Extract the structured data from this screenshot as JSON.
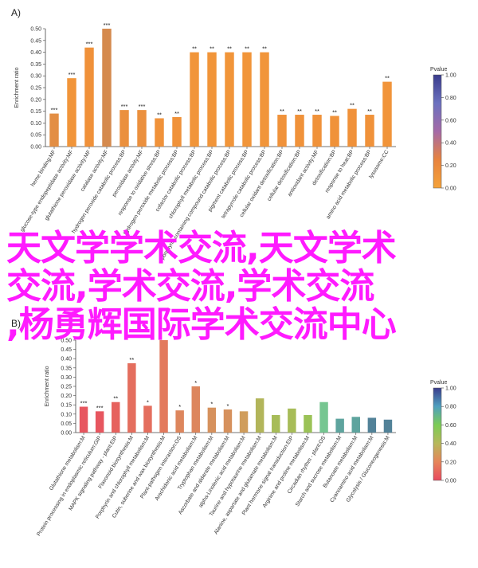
{
  "overlay": {
    "line1": "天文学学术交流,天文学术",
    "line2": "交流,学术交流,学术交流",
    "line3": ",杨勇辉国际学术交流中心"
  },
  "chart_data": [
    {
      "type": "bar",
      "panel_label": "A)",
      "ylabel": "Enrichment ratio",
      "ylim": [
        0,
        0.5
      ],
      "yticks": [
        "0.00",
        "0.05",
        "0.10",
        "0.15",
        "0.20",
        "0.25",
        "0.30",
        "0.35",
        "0.40",
        "0.45",
        "0.50"
      ],
      "categories": [
        "heme binding:MF",
        "glucose-type endopeptidase activity:MF",
        "glutathione peroxidase activity:MF",
        "catalase activity:MF",
        "hydrogen peroxide catabolic process:BP",
        "peroxidase activity:MF",
        "response to oxidative stress:BP",
        "hydrogen peroxide metabolic process:BP",
        "cofactor catabolic process:BP",
        "chlorophyll metabolic process:BP",
        "porphyrin-containing compound catabolic process:BP",
        "pigment catabolic process:BP",
        "tetrapyrrole catabolic process:BP",
        "cellular oxidant detoxification:BP",
        "cellular detoxification:BP",
        "antioxidant activity:MF",
        "detoxification:BP",
        "response to heat:BP",
        "amino acid metabolic process:BP",
        "lysosome:CC"
      ],
      "values": [
        0.14,
        0.29,
        0.42,
        0.5,
        0.155,
        0.155,
        0.12,
        0.125,
        0.4,
        0.4,
        0.4,
        0.4,
        0.4,
        0.135,
        0.135,
        0.135,
        0.13,
        0.16,
        0.135,
        0.275
      ],
      "significance": [
        "***",
        "***",
        "***",
        "***",
        "***",
        "***",
        "**",
        "**",
        "**",
        "**",
        "**",
        "**",
        "**",
        "**",
        "**",
        "**",
        "**",
        "**",
        "**",
        "**"
      ],
      "pvalues": [
        0.55,
        0.7,
        0.6,
        0.5,
        0.58,
        0.58,
        0.62,
        0.62,
        0.7,
        0.7,
        0.7,
        0.7,
        0.7,
        0.62,
        0.62,
        0.62,
        0.62,
        0.6,
        0.62,
        0.68
      ],
      "legend": {
        "title": "Pvalue",
        "ticks": [
          "0.00",
          "0.20",
          "0.40",
          "0.60",
          "0.80",
          "1.00"
        ],
        "placement": "right"
      }
    },
    {
      "type": "bar",
      "panel_label": "B)",
      "ylabel": "Enrichment ratio",
      "ylim": [
        0,
        0.5
      ],
      "yticks": [
        "0.00",
        "0.05",
        "0.10",
        "0.15",
        "0.20",
        "0.25",
        "0.30",
        "0.35",
        "0.40",
        "0.45",
        "0.50"
      ],
      "categories": [
        "Glutathione metabolism:M",
        "Protein processing in endoplasmic reticulum:GIP",
        "MAPK signaling pathway - plant:EIP",
        "Flavonoid biosynthesis:M",
        "Porphyrin and chlorophyll metabolism:M",
        "Cutin, suberine and wax biosynthesis:M",
        "Plant-pathogen interaction:OS",
        "Arachidonic acid metabolism:M",
        "Tryptophan metabolism:M",
        "Ascorbate and aldarate metabolism:M",
        "alpha-Linolenic acid metabolism:M",
        "Taurine and hypotaurine metabolism:M",
        "Alanine, aspartate and glutamate metabolism:M",
        "Plant hormone signal transduction:EIP",
        "Arginine and proline metabolism:M",
        "Circadian rhythm - plant:OS",
        "Starch and sucrose metabolism:M",
        "Butanoate metabolism:M",
        "Cyanoamino acid metabolism:M",
        "Glycolysis / Gluconeogenesis:M"
      ],
      "values": [
        0.14,
        0.115,
        0.165,
        0.375,
        0.145,
        0.5,
        0.12,
        0.25,
        0.135,
        0.125,
        0.115,
        0.185,
        0.095,
        0.13,
        0.095,
        0.165,
        0.075,
        0.085,
        0.08,
        0.07
      ],
      "significance": [
        "***",
        "***",
        "**",
        "**",
        "*",
        "",
        "*",
        "*",
        "*",
        "*",
        "",
        "",
        "",
        "",
        "",
        "",
        "",
        "",
        "",
        ""
      ],
      "pvalues": [
        0.05,
        0.05,
        0.1,
        0.15,
        0.15,
        0.2,
        0.25,
        0.25,
        0.3,
        0.3,
        0.35,
        0.5,
        0.55,
        0.55,
        0.6,
        0.75,
        0.85,
        0.85,
        0.9,
        0.9
      ],
      "legend": {
        "title": "Pvalue",
        "ticks": [
          "0.00",
          "0.20",
          "0.40",
          "0.60",
          "0.80",
          "1.00"
        ],
        "placement": "right"
      }
    }
  ]
}
